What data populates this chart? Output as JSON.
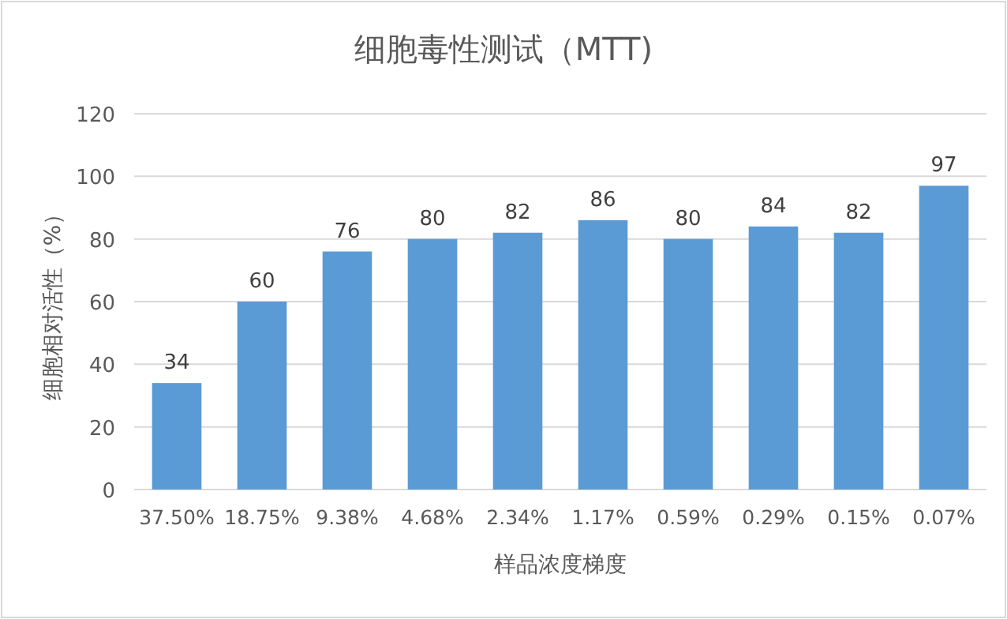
{
  "chart_data": {
    "type": "bar",
    "title": "细胞毒性测试（MTT)",
    "xlabel": "样品浓度梯度",
    "ylabel": "细胞相对活性（%）",
    "categories": [
      "37.50%",
      "18.75%",
      "9.38%",
      "4.68%",
      "2.34%",
      "1.17%",
      "0.59%",
      "0.29%",
      "0.15%",
      "0.07%"
    ],
    "values": [
      34,
      60,
      76,
      80,
      82,
      86,
      80,
      84,
      82,
      97
    ],
    "color": "#5b9bd5",
    "ylim": [
      0,
      120
    ],
    "yticks": [
      0,
      20,
      40,
      60,
      80,
      100,
      120
    ],
    "grid": "y",
    "data_labels": true
  }
}
